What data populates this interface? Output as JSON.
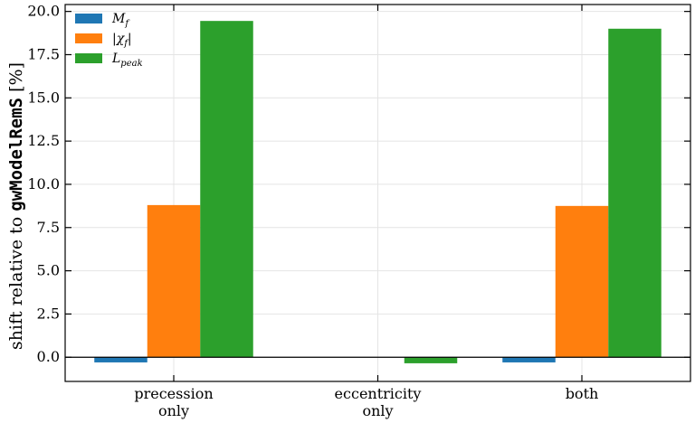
{
  "chart_data": {
    "type": "bar",
    "categories": [
      [
        "precession",
        "only"
      ],
      [
        "eccentricity",
        "only"
      ],
      [
        "both"
      ]
    ],
    "series": [
      {
        "name": "M_f",
        "legend_main": "M",
        "legend_sub": "f",
        "color": "#1f77b4",
        "values": [
          -0.3,
          0.0,
          -0.3
        ]
      },
      {
        "name": "|χ_f|",
        "legend_main": "|χ",
        "legend_sub": "f",
        "legend_tail": "|",
        "color": "#ff7f0e",
        "values": [
          8.8,
          0.0,
          8.75
        ]
      },
      {
        "name": "L_peak",
        "legend_main": "L",
        "legend_sub": "peak",
        "color": "#2ca02c",
        "values": [
          19.45,
          -0.35,
          19.0
        ]
      }
    ],
    "ylabel": {
      "prefix": "shift relative to ",
      "model": "gwModelRemS",
      "suffix": " [%]"
    },
    "ylim": [
      -1.4,
      20.4
    ],
    "yticks": [
      "0.0",
      "2.5",
      "5.0",
      "7.5",
      "10.0",
      "12.5",
      "15.0",
      "17.5",
      "20.0"
    ],
    "grid": true,
    "legend_position": "top-left",
    "zero_line": true
  }
}
